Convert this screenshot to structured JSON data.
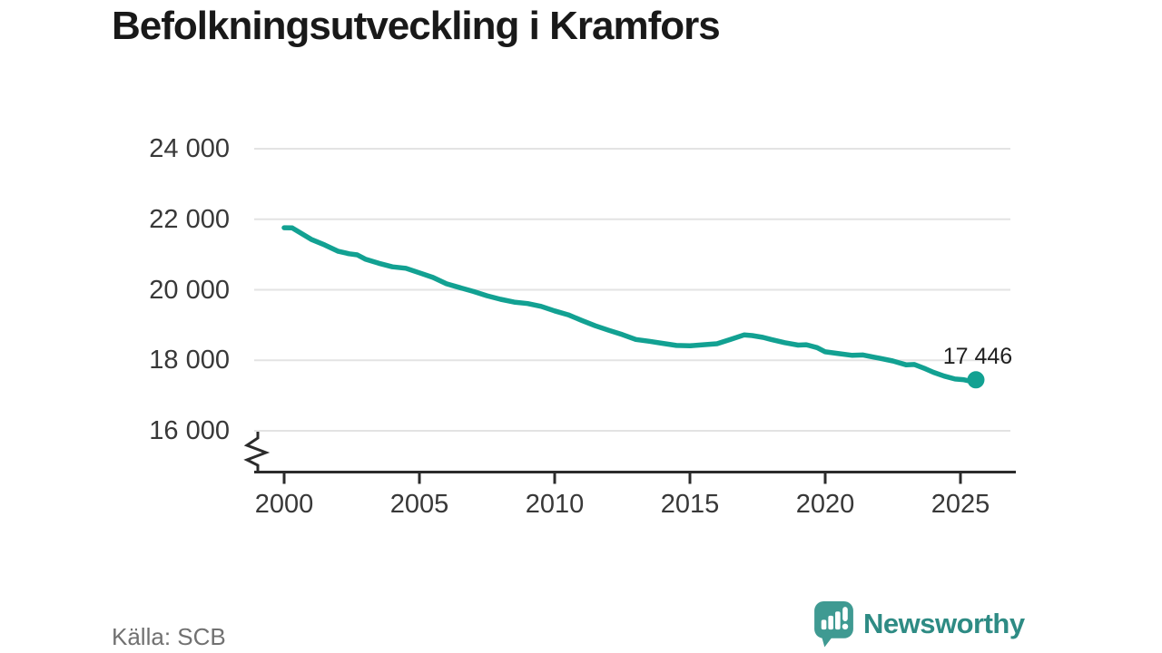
{
  "page": {
    "title": "Befolkningsutveckling i Kramfors"
  },
  "footer": {
    "source": "Källa: SCB",
    "brand": "Newsworthy"
  },
  "colors": {
    "line": "#12a192",
    "grid": "#e3e3e3",
    "axis": "#2b2b2b",
    "tick_label": "#383838",
    "title": "#191919",
    "source": "#717171",
    "logo_icon": "#3f9a92",
    "logo_text": "#2e8b84"
  },
  "chart_data": {
    "type": "line",
    "title": "Befolkningsutveckling i Kramfors",
    "xlabel": "",
    "ylabel": "",
    "source": "Källa: SCB",
    "grid": "horizontal",
    "legend": "none",
    "axis_break": true,
    "ylim": [
      16000,
      24000
    ],
    "xlim": [
      2000,
      2027
    ],
    "x_ticks": [
      2000,
      2005,
      2010,
      2015,
      2020,
      2025
    ],
    "y_ticks": [
      {
        "value": 24000,
        "label": "24 000"
      },
      {
        "value": 22000,
        "label": "22 000"
      },
      {
        "value": 20000,
        "label": "20 000"
      },
      {
        "value": 18000,
        "label": "18 000"
      },
      {
        "value": 16000,
        "label": "16 000"
      }
    ],
    "end_label": "17 446",
    "end_value": 17446,
    "series": [
      {
        "name": "Befolkning i Kramfors",
        "x": [
          2000,
          2000.3,
          2001,
          2001.5,
          2002,
          2002.4,
          2002.7,
          2003,
          2003.5,
          2004,
          2004.5,
          2005,
          2005.5,
          2006,
          2006.5,
          2007,
          2007.5,
          2008,
          2008.5,
          2009,
          2009.5,
          2010,
          2010.5,
          2011,
          2011.5,
          2012,
          2012.5,
          2013,
          2013.5,
          2014,
          2014.5,
          2015,
          2015.5,
          2016,
          2016.5,
          2017,
          2017.3,
          2017.7,
          2018,
          2018.5,
          2019,
          2019.3,
          2019.7,
          2020,
          2020.5,
          2021,
          2021.4,
          2021.8,
          2022,
          2022.5,
          2023,
          2023.3,
          2023.7,
          2024,
          2024.4,
          2024.8,
          2025.1,
          2025.35,
          2025.57
        ],
        "y": [
          21760,
          21755,
          21430,
          21270,
          21090,
          21020,
          20990,
          20870,
          20750,
          20650,
          20610,
          20480,
          20350,
          20170,
          20060,
          19950,
          19830,
          19730,
          19650,
          19610,
          19530,
          19400,
          19290,
          19130,
          18980,
          18850,
          18730,
          18590,
          18540,
          18480,
          18420,
          18410,
          18440,
          18470,
          18590,
          18720,
          18700,
          18650,
          18590,
          18500,
          18430,
          18440,
          18360,
          18240,
          18190,
          18140,
          18150,
          18090,
          18060,
          17980,
          17870,
          17880,
          17760,
          17660,
          17550,
          17470,
          17450,
          17410,
          17446
        ]
      }
    ]
  }
}
